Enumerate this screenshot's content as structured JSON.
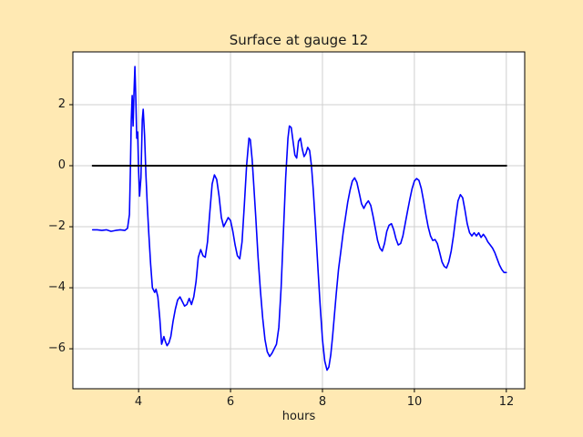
{
  "figure": {
    "background_color": "#ffe9b3",
    "plot_background": "#ffffff",
    "grid_color": "#cfcfcf",
    "spine_color": "#000000"
  },
  "chart_data": {
    "type": "line",
    "title": "Surface at gauge 12",
    "xlabel": "hours",
    "ylabel": "",
    "xlim": [
      2.57,
      12.4
    ],
    "ylim": [
      -7.31,
      3.73
    ],
    "xticks": [
      4,
      6,
      8,
      10,
      12
    ],
    "yticks": [
      -6,
      -4,
      -2,
      0,
      2
    ],
    "xtick_labels": [
      "4",
      "6",
      "8",
      "10",
      "12"
    ],
    "ytick_labels": [
      "−6",
      "−4",
      "−2",
      "0",
      "2"
    ],
    "grid": true,
    "legend": "none",
    "series": [
      {
        "name": "surface-elevation",
        "color": "#0000ff",
        "width": 1.6,
        "points": [
          [
            3.0,
            -2.1
          ],
          [
            3.1,
            -2.1
          ],
          [
            3.2,
            -2.12
          ],
          [
            3.3,
            -2.1
          ],
          [
            3.4,
            -2.15
          ],
          [
            3.5,
            -2.12
          ],
          [
            3.6,
            -2.1
          ],
          [
            3.7,
            -2.12
          ],
          [
            3.76,
            -2.05
          ],
          [
            3.8,
            -1.6
          ],
          [
            3.82,
            -0.2
          ],
          [
            3.84,
            1.5
          ],
          [
            3.86,
            2.3
          ],
          [
            3.88,
            1.3
          ],
          [
            3.9,
            2.4
          ],
          [
            3.92,
            3.25
          ],
          [
            3.94,
            2.2
          ],
          [
            3.96,
            0.9
          ],
          [
            3.98,
            1.1
          ],
          [
            4.0,
            -0.2
          ],
          [
            4.02,
            -1.0
          ],
          [
            4.05,
            -0.4
          ],
          [
            4.08,
            1.5
          ],
          [
            4.1,
            1.85
          ],
          [
            4.13,
            1.0
          ],
          [
            4.16,
            -0.3
          ],
          [
            4.19,
            -1.3
          ],
          [
            4.22,
            -2.2
          ],
          [
            4.26,
            -3.2
          ],
          [
            4.3,
            -4.0
          ],
          [
            4.35,
            -4.15
          ],
          [
            4.38,
            -4.05
          ],
          [
            4.42,
            -4.3
          ],
          [
            4.46,
            -5.0
          ],
          [
            4.5,
            -5.85
          ],
          [
            4.55,
            -5.6
          ],
          [
            4.58,
            -5.75
          ],
          [
            4.62,
            -5.9
          ],
          [
            4.66,
            -5.8
          ],
          [
            4.7,
            -5.6
          ],
          [
            4.75,
            -5.1
          ],
          [
            4.8,
            -4.7
          ],
          [
            4.85,
            -4.4
          ],
          [
            4.9,
            -4.3
          ],
          [
            4.95,
            -4.45
          ],
          [
            5.0,
            -4.6
          ],
          [
            5.05,
            -4.55
          ],
          [
            5.1,
            -4.35
          ],
          [
            5.15,
            -4.55
          ],
          [
            5.2,
            -4.3
          ],
          [
            5.25,
            -3.8
          ],
          [
            5.3,
            -3.0
          ],
          [
            5.35,
            -2.75
          ],
          [
            5.4,
            -2.95
          ],
          [
            5.45,
            -3.0
          ],
          [
            5.5,
            -2.5
          ],
          [
            5.55,
            -1.5
          ],
          [
            5.6,
            -0.6
          ],
          [
            5.65,
            -0.3
          ],
          [
            5.7,
            -0.45
          ],
          [
            5.75,
            -1.0
          ],
          [
            5.8,
            -1.7
          ],
          [
            5.85,
            -2.0
          ],
          [
            5.9,
            -1.85
          ],
          [
            5.95,
            -1.7
          ],
          [
            6.0,
            -1.8
          ],
          [
            6.05,
            -2.15
          ],
          [
            6.1,
            -2.6
          ],
          [
            6.15,
            -2.95
          ],
          [
            6.2,
            -3.05
          ],
          [
            6.25,
            -2.5
          ],
          [
            6.3,
            -1.3
          ],
          [
            6.35,
            0.0
          ],
          [
            6.4,
            0.9
          ],
          [
            6.43,
            0.85
          ],
          [
            6.47,
            0.2
          ],
          [
            6.5,
            -0.5
          ],
          [
            6.55,
            -1.7
          ],
          [
            6.6,
            -3.0
          ],
          [
            6.65,
            -4.1
          ],
          [
            6.7,
            -5.0
          ],
          [
            6.75,
            -5.7
          ],
          [
            6.8,
            -6.1
          ],
          [
            6.85,
            -6.25
          ],
          [
            6.9,
            -6.15
          ],
          [
            6.95,
            -6.0
          ],
          [
            7.0,
            -5.85
          ],
          [
            7.05,
            -5.3
          ],
          [
            7.1,
            -4.0
          ],
          [
            7.15,
            -2.2
          ],
          [
            7.2,
            -0.4
          ],
          [
            7.25,
            0.9
          ],
          [
            7.28,
            1.3
          ],
          [
            7.32,
            1.25
          ],
          [
            7.36,
            0.8
          ],
          [
            7.4,
            0.35
          ],
          [
            7.44,
            0.25
          ],
          [
            7.48,
            0.8
          ],
          [
            7.52,
            0.9
          ],
          [
            7.56,
            0.55
          ],
          [
            7.6,
            0.3
          ],
          [
            7.64,
            0.4
          ],
          [
            7.68,
            0.6
          ],
          [
            7.72,
            0.5
          ],
          [
            7.76,
            0.0
          ],
          [
            7.8,
            -0.8
          ],
          [
            7.85,
            -2.0
          ],
          [
            7.9,
            -3.3
          ],
          [
            7.95,
            -4.6
          ],
          [
            8.0,
            -5.7
          ],
          [
            8.05,
            -6.4
          ],
          [
            8.1,
            -6.7
          ],
          [
            8.14,
            -6.6
          ],
          [
            8.18,
            -6.2
          ],
          [
            8.22,
            -5.6
          ],
          [
            8.26,
            -4.9
          ],
          [
            8.3,
            -4.2
          ],
          [
            8.35,
            -3.4
          ],
          [
            8.4,
            -2.8
          ],
          [
            8.45,
            -2.2
          ],
          [
            8.5,
            -1.7
          ],
          [
            8.55,
            -1.2
          ],
          [
            8.6,
            -0.8
          ],
          [
            8.65,
            -0.5
          ],
          [
            8.7,
            -0.4
          ],
          [
            8.75,
            -0.55
          ],
          [
            8.8,
            -0.9
          ],
          [
            8.85,
            -1.25
          ],
          [
            8.9,
            -1.4
          ],
          [
            8.95,
            -1.25
          ],
          [
            9.0,
            -1.15
          ],
          [
            9.05,
            -1.3
          ],
          [
            9.1,
            -1.65
          ],
          [
            9.15,
            -2.05
          ],
          [
            9.2,
            -2.45
          ],
          [
            9.25,
            -2.7
          ],
          [
            9.3,
            -2.8
          ],
          [
            9.35,
            -2.55
          ],
          [
            9.4,
            -2.15
          ],
          [
            9.45,
            -1.95
          ],
          [
            9.5,
            -1.9
          ],
          [
            9.55,
            -2.1
          ],
          [
            9.6,
            -2.4
          ],
          [
            9.65,
            -2.6
          ],
          [
            9.7,
            -2.55
          ],
          [
            9.75,
            -2.3
          ],
          [
            9.8,
            -1.9
          ],
          [
            9.85,
            -1.5
          ],
          [
            9.9,
            -1.1
          ],
          [
            9.95,
            -0.75
          ],
          [
            10.0,
            -0.5
          ],
          [
            10.05,
            -0.42
          ],
          [
            10.1,
            -0.48
          ],
          [
            10.15,
            -0.75
          ],
          [
            10.2,
            -1.15
          ],
          [
            10.25,
            -1.6
          ],
          [
            10.3,
            -2.0
          ],
          [
            10.35,
            -2.3
          ],
          [
            10.4,
            -2.45
          ],
          [
            10.45,
            -2.42
          ],
          [
            10.5,
            -2.55
          ],
          [
            10.55,
            -2.85
          ],
          [
            10.6,
            -3.15
          ],
          [
            10.65,
            -3.3
          ],
          [
            10.7,
            -3.35
          ],
          [
            10.75,
            -3.15
          ],
          [
            10.8,
            -2.8
          ],
          [
            10.85,
            -2.3
          ],
          [
            10.9,
            -1.7
          ],
          [
            10.95,
            -1.15
          ],
          [
            11.0,
            -0.95
          ],
          [
            11.05,
            -1.05
          ],
          [
            11.1,
            -1.45
          ],
          [
            11.15,
            -1.9
          ],
          [
            11.2,
            -2.2
          ],
          [
            11.25,
            -2.3
          ],
          [
            11.3,
            -2.2
          ],
          [
            11.35,
            -2.3
          ],
          [
            11.4,
            -2.2
          ],
          [
            11.45,
            -2.35
          ],
          [
            11.5,
            -2.25
          ],
          [
            11.55,
            -2.35
          ],
          [
            11.6,
            -2.5
          ],
          [
            11.65,
            -2.6
          ],
          [
            11.7,
            -2.7
          ],
          [
            11.75,
            -2.85
          ],
          [
            11.8,
            -3.05
          ],
          [
            11.85,
            -3.25
          ],
          [
            11.9,
            -3.4
          ],
          [
            11.95,
            -3.5
          ],
          [
            12.0,
            -3.5
          ]
        ]
      },
      {
        "name": "zero-reference-line",
        "color": "#000000",
        "width": 2,
        "points": [
          [
            3.0,
            0.0
          ],
          [
            12.0,
            0.0
          ]
        ]
      }
    ]
  }
}
